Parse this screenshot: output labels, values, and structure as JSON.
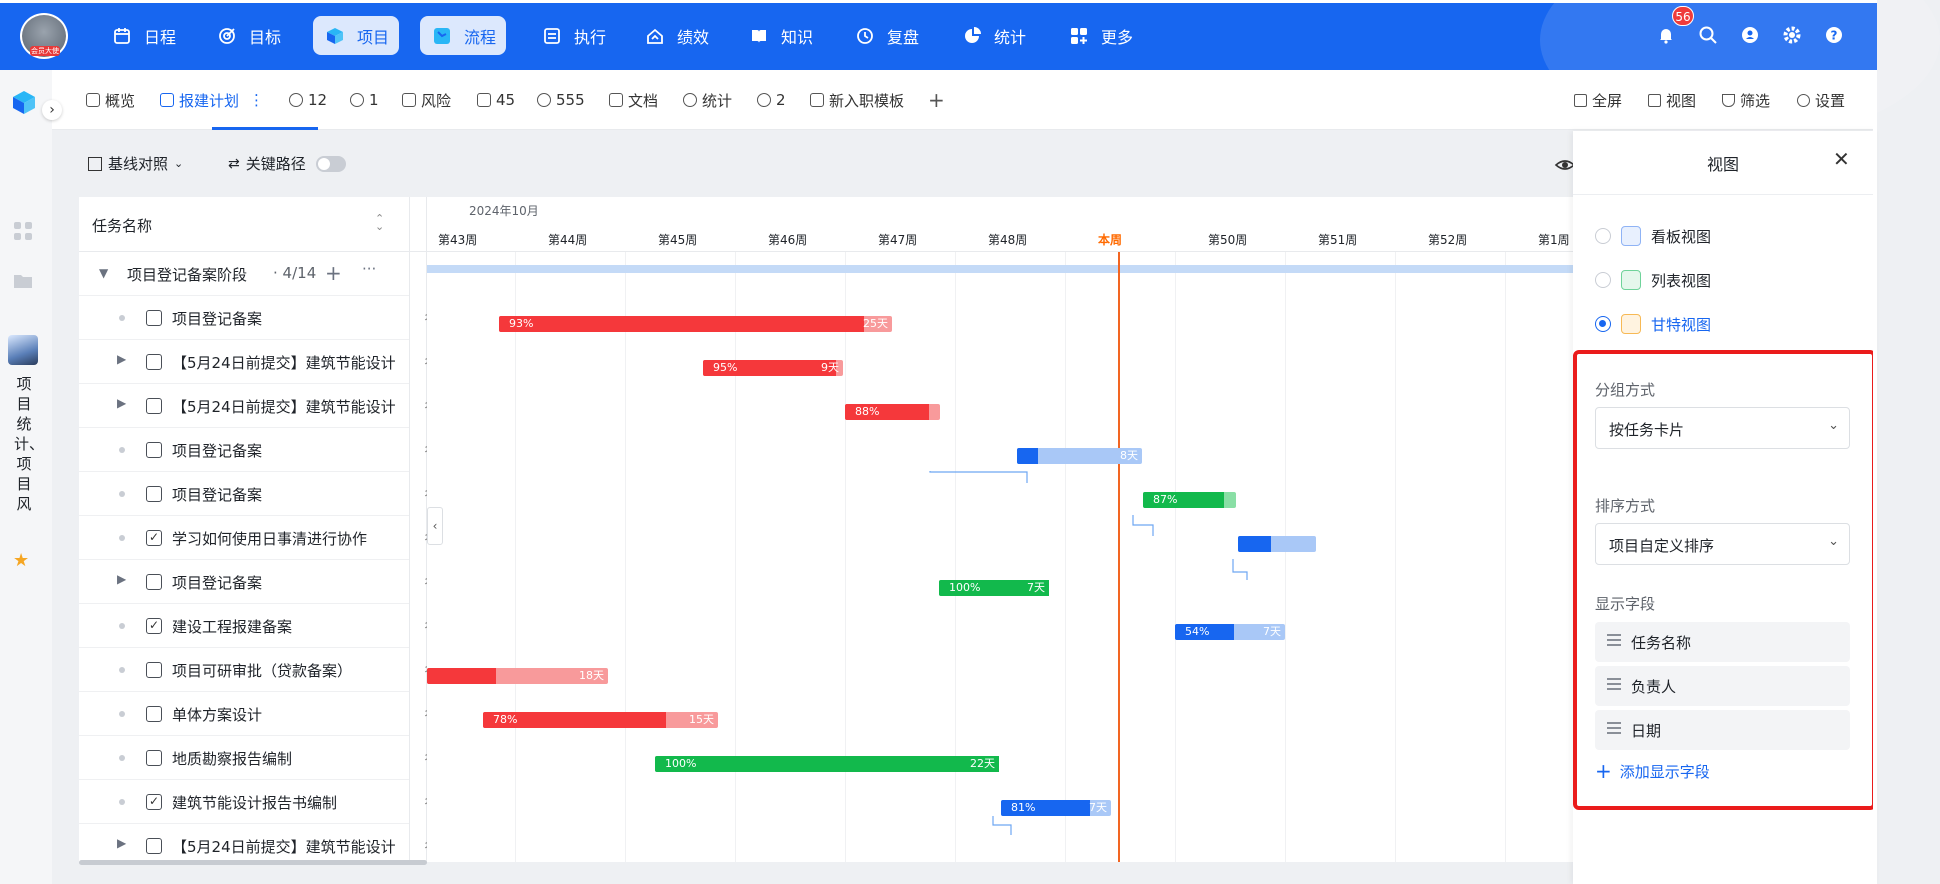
{
  "topnav": {
    "avatar_badge": "会员大使",
    "items": [
      {
        "label": "日程",
        "icon": "calendar-icon"
      },
      {
        "label": "目标",
        "icon": "target-icon"
      },
      {
        "label": "项目",
        "icon": "cube-icon",
        "active": true
      },
      {
        "label": "流程",
        "icon": "flow-icon",
        "active": true
      },
      {
        "label": "执行",
        "icon": "checklist-icon"
      },
      {
        "label": "绩效",
        "icon": "performance-icon"
      },
      {
        "label": "知识",
        "icon": "book-icon"
      },
      {
        "label": "复盘",
        "icon": "review-icon"
      },
      {
        "label": "统计",
        "icon": "pie-icon"
      },
      {
        "label": "更多",
        "icon": "more-grid-icon"
      }
    ],
    "notification_count": "56",
    "accent": "#1766f0"
  },
  "leftrail": {
    "project_name": "项目统计、项目风"
  },
  "tabs": [
    {
      "label": "概览",
      "icon": "chart-icon"
    },
    {
      "label": "报建计划",
      "icon": "check-square-icon",
      "active": true,
      "more": "⋮"
    },
    {
      "label": "12",
      "icon": "upload-icon"
    },
    {
      "label": "1",
      "icon": "upload-icon"
    },
    {
      "label": "风险",
      "icon": "warning-icon"
    },
    {
      "label": "45",
      "icon": "file-icon"
    },
    {
      "label": "555",
      "icon": "upload-icon"
    },
    {
      "label": "文档",
      "icon": "doc-icon"
    },
    {
      "label": "统计",
      "icon": "clock-icon"
    },
    {
      "label": "2",
      "icon": "upload-icon"
    },
    {
      "label": "新入职模板",
      "icon": "check-square-icon"
    }
  ],
  "tab_actions": {
    "fullscreen": "全屏",
    "view": "视图",
    "filter": "筛选",
    "settings": "设置"
  },
  "toolbar": {
    "baseline": "基线对照",
    "critical_path": "关键路径"
  },
  "tasklist": {
    "header": "任务名称",
    "group": {
      "name": "项目登记备案阶段",
      "count": "4/14"
    },
    "rows": [
      {
        "name": "项目登记备案",
        "checked": false,
        "expandable": false
      },
      {
        "name": "【5月24日前提交】建筑节能设计",
        "checked": false,
        "expandable": true
      },
      {
        "name": "【5月24日前提交】建筑节能设计",
        "checked": false,
        "expandable": true
      },
      {
        "name": "项目登记备案",
        "checked": false,
        "expandable": false
      },
      {
        "name": "项目登记备案",
        "checked": false,
        "expandable": false
      },
      {
        "name": "学习如何使用日事清进行协作",
        "checked": true,
        "expandable": false
      },
      {
        "name": "项目登记备案",
        "checked": false,
        "expandable": true
      },
      {
        "name": "建设工程报建备案",
        "checked": true,
        "expandable": false
      },
      {
        "name": "项目可研审批（贷款备案）",
        "checked": false,
        "expandable": false
      },
      {
        "name": "单体方案设计",
        "checked": false,
        "expandable": false
      },
      {
        "name": "地质勘察报告编制",
        "checked": false,
        "expandable": false
      },
      {
        "name": "建筑节能设计报告书编制",
        "checked": true,
        "expandable": false
      },
      {
        "name": "【5月24日前提交】建筑节能设计",
        "checked": false,
        "expandable": true
      }
    ],
    "second_col_char": "彳"
  },
  "gantt": {
    "month": "2024年10月",
    "weeks": [
      "第43周",
      "第44周",
      "第45周",
      "第46周",
      "第47周",
      "第48周",
      "本周",
      "第50周",
      "第51周",
      "第52周",
      "第1周"
    ],
    "colors": {
      "red": "#f5383b",
      "red_light": "#f89a9b",
      "green": "#12b94c",
      "green_light": "#89dfa5",
      "blue": "#1766f0",
      "blue_light": "#a9c8f7",
      "today": "#f26522"
    },
    "bars": [
      {
        "row": 1,
        "pct": "93%",
        "days": "25天",
        "color": "red",
        "progress": 0.93
      },
      {
        "row": 2,
        "pct": "95%",
        "days": "9天",
        "color": "red",
        "progress": 0.95
      },
      {
        "row": 3,
        "pct": "88%",
        "days": "",
        "color": "red",
        "progress": 0.88
      },
      {
        "row": 4,
        "pct": "",
        "days": "8天",
        "color": "blue",
        "progress": 0.17
      },
      {
        "row": 5,
        "pct": "87%",
        "days": "",
        "color": "green",
        "progress": 0.87
      },
      {
        "row": 6,
        "pct": "",
        "days": "",
        "color": "blue",
        "progress": 0.42
      },
      {
        "row": 7,
        "pct": "100%",
        "days": "7天",
        "color": "green",
        "progress": 1.0
      },
      {
        "row": 8,
        "pct": "54%",
        "days": "7天",
        "color": "blue",
        "progress": 0.54
      },
      {
        "row": 9,
        "pct": "",
        "days": "18天",
        "color": "red",
        "progress": 0.38
      },
      {
        "row": 10,
        "pct": "78%",
        "days": "15天",
        "color": "red",
        "progress": 0.78
      },
      {
        "row": 11,
        "pct": "100%",
        "days": "22天",
        "color": "green",
        "progress": 1.0
      },
      {
        "row": 12,
        "pct": "81%",
        "days": "7天",
        "color": "blue",
        "progress": 0.81
      }
    ]
  },
  "panel": {
    "title": "视图",
    "views": [
      {
        "label": "看板视图",
        "icon": "kanban-icon",
        "selected": false
      },
      {
        "label": "列表视图",
        "icon": "list-icon",
        "selected": false
      },
      {
        "label": "甘特视图",
        "icon": "gantt-icon",
        "selected": true
      }
    ],
    "group_label": "分组方式",
    "group_value": "按任务卡片",
    "sort_label": "排序方式",
    "sort_value": "项目自定义排序",
    "fields_label": "显示字段",
    "fields": [
      "任务名称",
      "负责人",
      "日期"
    ],
    "add_field": "添加显示字段"
  }
}
